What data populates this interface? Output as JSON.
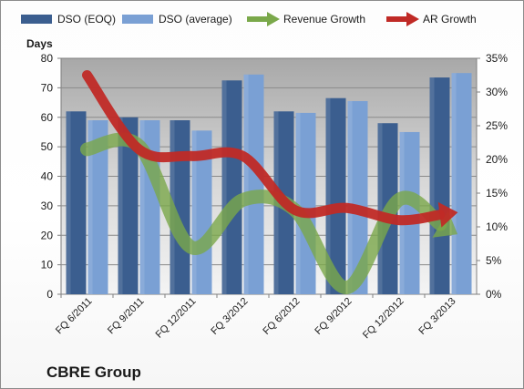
{
  "chart_data": {
    "type": "bar",
    "company": "CBRE Group",
    "left_axis_title": "Days",
    "categories": [
      "FQ 6/2011",
      "FQ 9/2011",
      "FQ 12/2011",
      "FQ 3/2012",
      "FQ 6/2012",
      "FQ 9/2012",
      "FQ 12/2012",
      "FQ 3/2013"
    ],
    "ylim": [
      0,
      80
    ],
    "yticks": [
      "0",
      "10",
      "20",
      "30",
      "40",
      "50",
      "60",
      "70",
      "80"
    ],
    "y2lim": [
      0,
      35
    ],
    "y2ticks": [
      "0%",
      "5%",
      "10%",
      "15%",
      "20%",
      "25%",
      "30%",
      "35%"
    ],
    "series": [
      {
        "name": "DSO (EOQ)",
        "type": "bar",
        "axis": "left",
        "color": "#3b5e8f",
        "values": [
          62,
          60,
          59,
          72.5,
          62,
          66.5,
          58,
          73.5
        ]
      },
      {
        "name": "DSO (average)",
        "type": "bar",
        "axis": "left",
        "color": "#7aa0d4",
        "values": [
          59,
          59,
          55.5,
          74.5,
          61.5,
          65.5,
          55,
          75
        ]
      },
      {
        "name": "Revenue Growth",
        "type": "line",
        "axis": "right",
        "color": "#7aa84a",
        "values": [
          21.5,
          22,
          7,
          14,
          12.5,
          1,
          14,
          9.5
        ]
      },
      {
        "name": "AR Growth",
        "type": "line",
        "axis": "right",
        "color": "#c02a26",
        "values": [
          32.5,
          21.5,
          20.5,
          20.5,
          12.5,
          12.8,
          11,
          12
        ]
      }
    ],
    "grid": true,
    "legend": "top"
  }
}
